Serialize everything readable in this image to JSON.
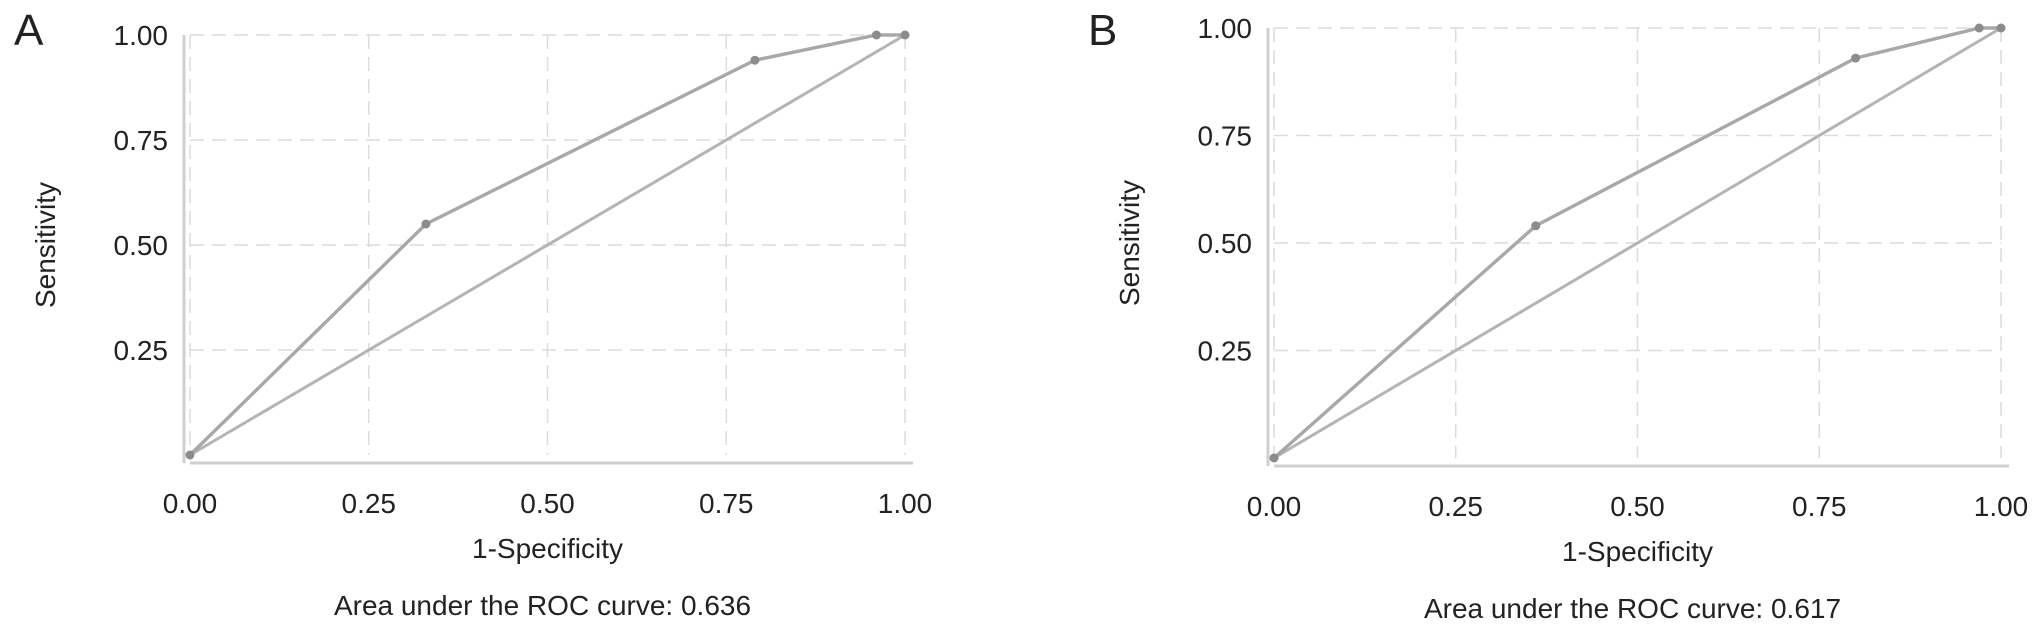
{
  "chart_data": [
    {
      "panel": "A",
      "type": "line",
      "xlabel": "1-Specificity",
      "ylabel": "Sensitivity",
      "xticks": [
        "0.00",
        "0.25",
        "0.50",
        "0.75",
        "1.00"
      ],
      "yticks": [
        "0.25",
        "0.50",
        "0.75",
        "1.00"
      ],
      "xlim": [
        0,
        1
      ],
      "ylim": [
        0,
        1
      ],
      "grid": true,
      "caption": "Area under the ROC curve: 0.636",
      "series": [
        {
          "x": [
            0.0,
            0.33,
            0.79,
            0.96,
            1.0
          ],
          "y": [
            0.0,
            0.55,
            0.94,
            1.0,
            1.0
          ]
        },
        {
          "x": [
            0.0,
            1.0
          ],
          "y": [
            0.0,
            1.0
          ]
        }
      ]
    },
    {
      "panel": "B",
      "type": "line",
      "xlabel": "1-Specificity",
      "ylabel": "Sensitivity",
      "xticks": [
        "0.00",
        "0.25",
        "0.50",
        "0.75",
        "1.00"
      ],
      "yticks": [
        "0.25",
        "0.50",
        "0.75",
        "1.00"
      ],
      "xlim": [
        0,
        1
      ],
      "ylim": [
        0,
        1
      ],
      "grid": true,
      "caption": "Area under the ROC curve: 0.617",
      "series": [
        {
          "x": [
            0.0,
            0.36,
            0.8,
            0.97,
            1.0
          ],
          "y": [
            0.0,
            0.54,
            0.93,
            1.0,
            1.0
          ]
        },
        {
          "x": [
            0.0,
            1.0
          ],
          "y": [
            0.0,
            1.0
          ]
        }
      ]
    }
  ]
}
